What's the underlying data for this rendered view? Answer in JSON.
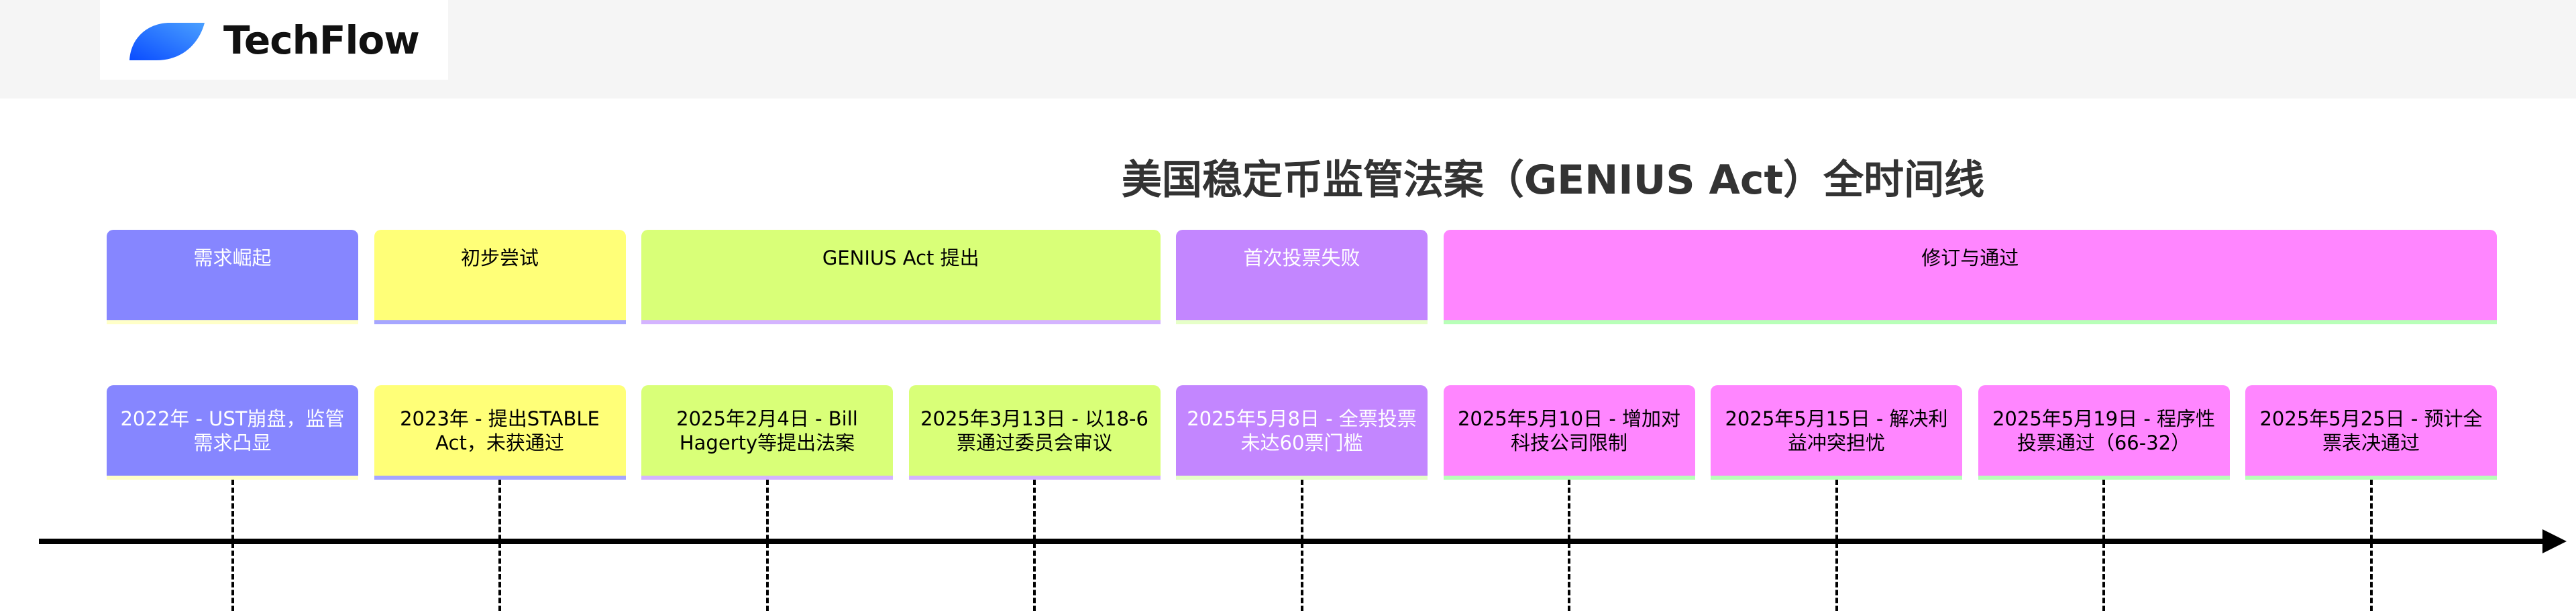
{
  "brand": {
    "name": "TechFlow",
    "logo_icon": "blue-leaf-logo"
  },
  "title": "美国稳定币监管法案（GENIUS Act）全时间线",
  "colors": {
    "c0": "#8686ff",
    "c1": "#ffff78",
    "c2": "#d9ff78",
    "c3": "#c386ff",
    "c4": "#ff86ff"
  },
  "sections": [
    {
      "label": "需求崛起",
      "color": "#8686ff",
      "text": "#ffffff",
      "border": "#ffffc8",
      "span": 1
    },
    {
      "label": "初步尝试",
      "color": "#ffff78",
      "text": "#000000",
      "border": "#a6a6ff",
      "span": 1
    },
    {
      "label": "GENIUS Act 提出",
      "color": "#d9ff78",
      "text": "#000000",
      "border": "#d4b4ff",
      "span": 2
    },
    {
      "label": "首次投票失败",
      "color": "#c386ff",
      "text": "#ffffff",
      "border": "#e6ffc8",
      "span": 1
    },
    {
      "label": "修订与通过",
      "color": "#ff86ff",
      "text": "#000000",
      "border": "#b8ffb8",
      "span": 4
    }
  ],
  "events": [
    {
      "text": "2022年 - UST崩盘，监管需求凸显",
      "section": 0
    },
    {
      "text": "2023年 - 提出STABLE Act，未获通过",
      "section": 1
    },
    {
      "text": "2025年2月4日 - Bill Hagerty等提出法案",
      "section": 2
    },
    {
      "text": "2025年3月13日 - 以18-6票通过委员会审议",
      "section": 2
    },
    {
      "text": "2025年5月8日 - 全票投票未达60票门槛",
      "section": 3
    },
    {
      "text": "2025年5月10日 - 增加对科技公司限制",
      "section": 4
    },
    {
      "text": "2025年5月15日 - 解决利益冲突担忧",
      "section": 4
    },
    {
      "text": "2025年5月19日 - 程序性投票通过（66-32）",
      "section": 4
    },
    {
      "text": "2025年5月25日 - 预计全票表决通过",
      "section": 4
    }
  ]
}
